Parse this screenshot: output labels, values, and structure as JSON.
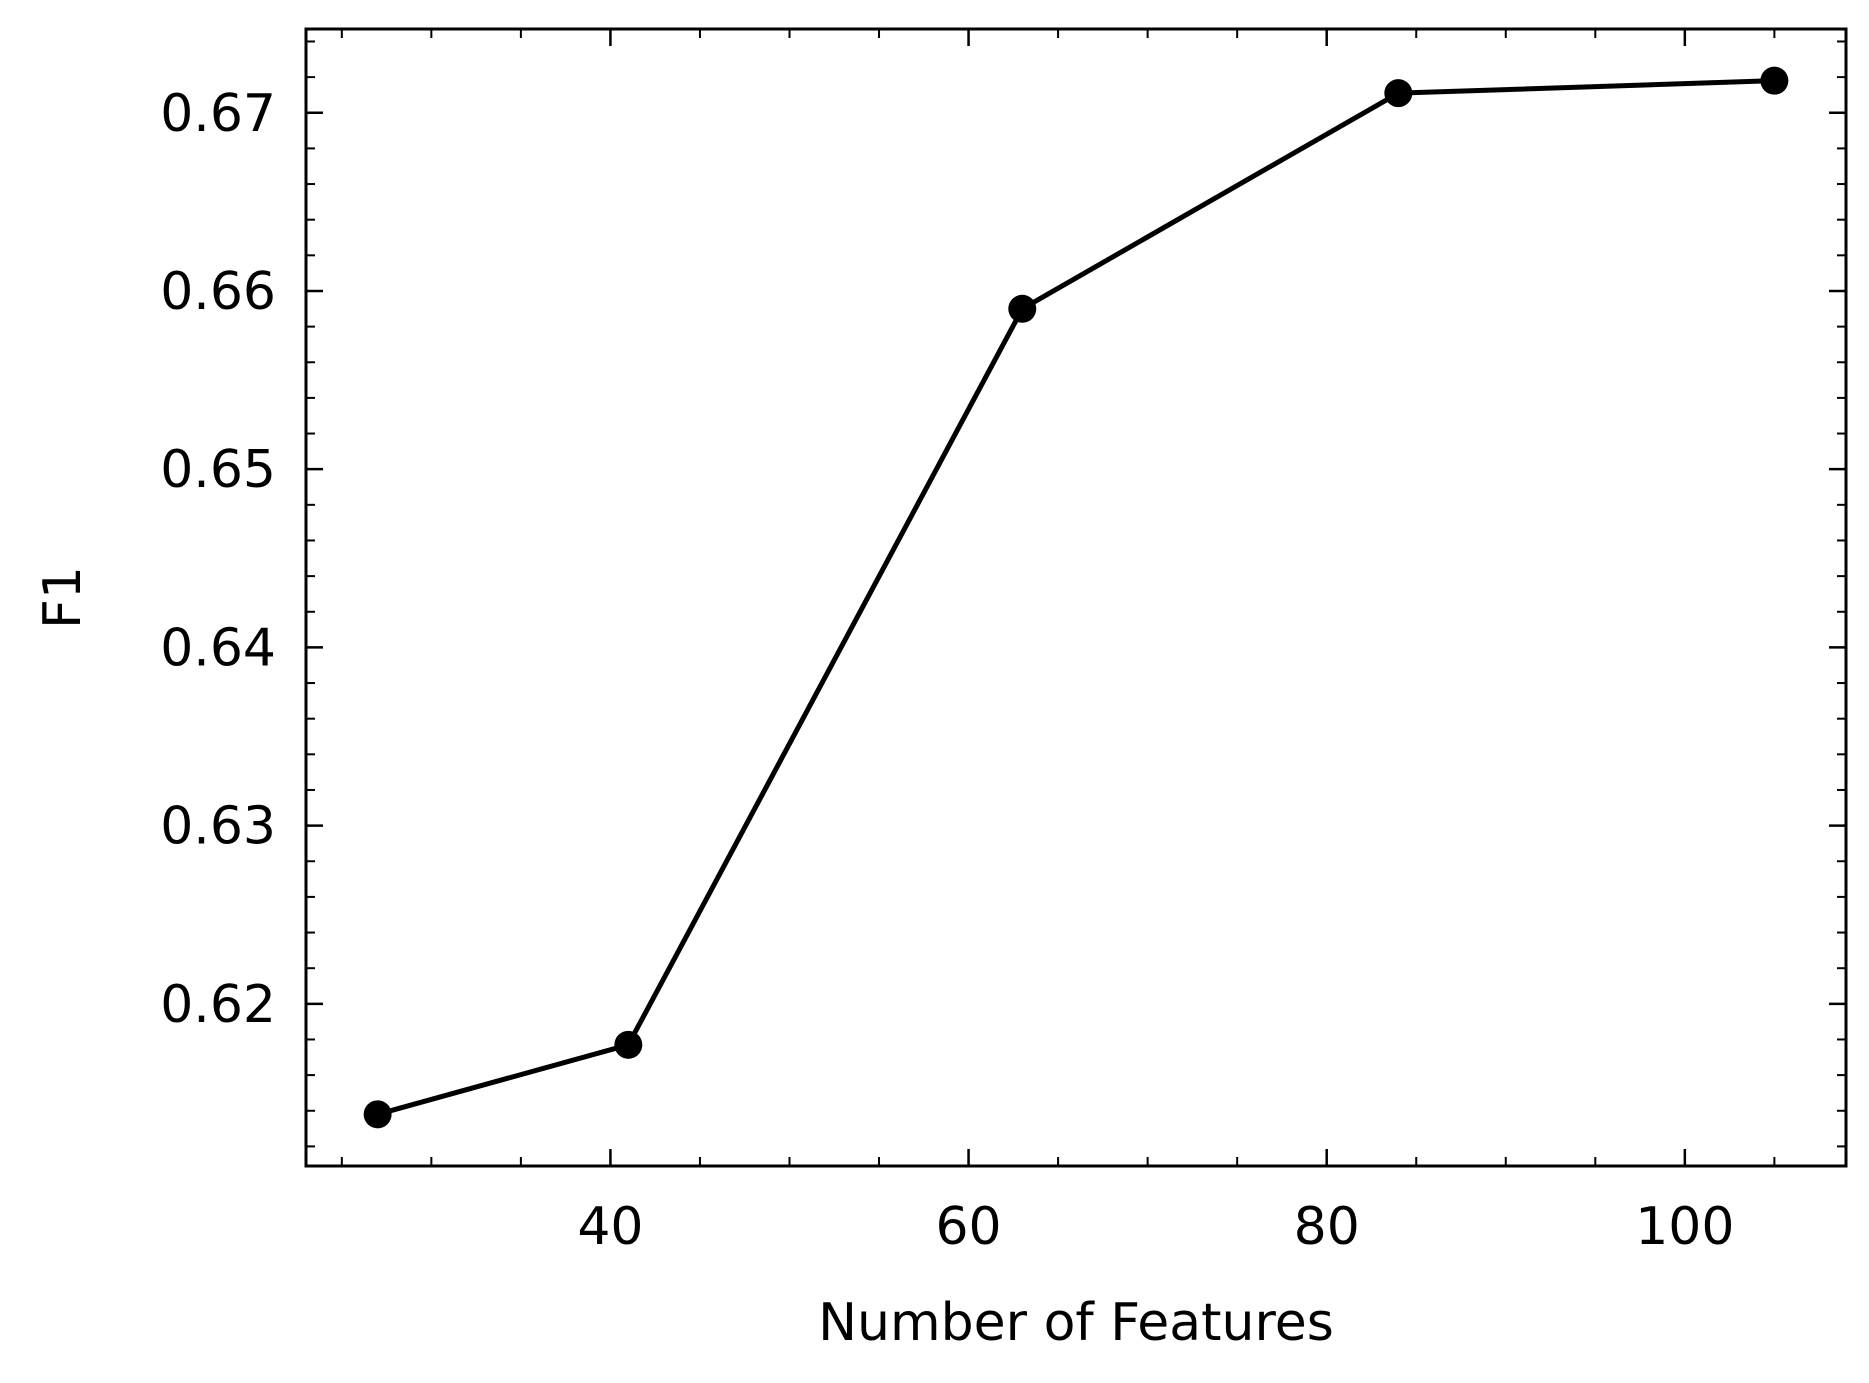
{
  "chart_data": {
    "type": "line",
    "title": "",
    "xlabel": "Number of Features",
    "ylabel": "F1",
    "xlim": [
      23,
      109
    ],
    "ylim": [
      0.6109,
      0.6747
    ],
    "x_ticks": [
      40,
      60,
      80,
      100
    ],
    "x_tick_labels": [
      "40",
      "60",
      "80",
      "100"
    ],
    "y_ticks": [
      0.62,
      0.63,
      0.64,
      0.65,
      0.66,
      0.67
    ],
    "y_tick_labels": [
      "0.62",
      "0.63",
      "0.64",
      "0.65",
      "0.66",
      "0.67"
    ],
    "x_minor_step": 5,
    "y_minor_step": 0.002,
    "grid": false,
    "series": [
      {
        "x": [
          27,
          41,
          63,
          84,
          105
        ],
        "values": [
          0.6138,
          0.6177,
          0.659,
          0.6711,
          0.6718
        ],
        "color": "#000000",
        "marker": "circle"
      }
    ]
  }
}
